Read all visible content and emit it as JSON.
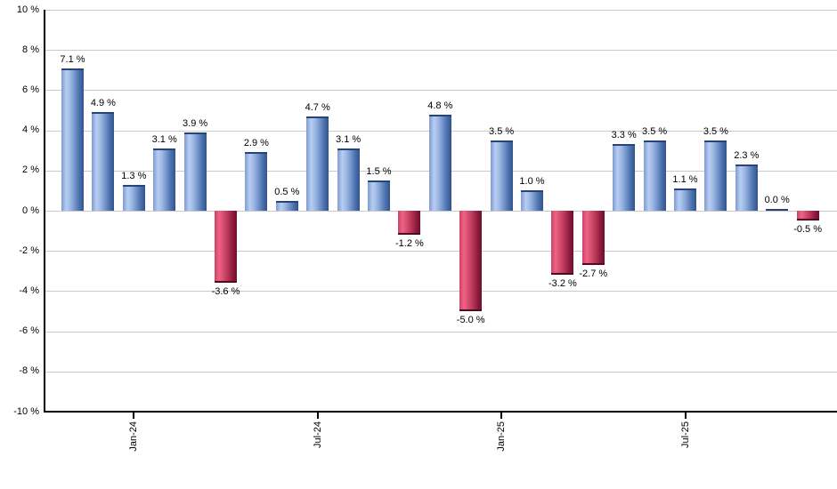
{
  "chart_data": {
    "type": "bar",
    "title": "",
    "grid": true,
    "legend_position": "none",
    "bars": [
      {
        "value": 7.1,
        "label": "7.1 %"
      },
      {
        "value": 4.9,
        "label": "4.9 %"
      },
      {
        "value": 1.3,
        "label": "1.3 %"
      },
      {
        "value": 3.1,
        "label": "3.1 %"
      },
      {
        "value": 3.9,
        "label": "3.9 %"
      },
      {
        "value": -3.6,
        "label": "-3.6 %"
      },
      {
        "value": 2.9,
        "label": "2.9 %"
      },
      {
        "value": 0.5,
        "label": "0.5 %"
      },
      {
        "value": 4.7,
        "label": "4.7 %"
      },
      {
        "value": 3.1,
        "label": "3.1 %"
      },
      {
        "value": 1.5,
        "label": "1.5 %"
      },
      {
        "value": -1.2,
        "label": "-1.2 %"
      },
      {
        "value": 4.8,
        "label": "4.8 %"
      },
      {
        "value": -5.0,
        "label": "-5.0 %"
      },
      {
        "value": 3.5,
        "label": "3.5 %"
      },
      {
        "value": 1.0,
        "label": "1.0 %"
      },
      {
        "value": -3.2,
        "label": "-3.2 %"
      },
      {
        "value": -2.7,
        "label": "-2.7 %"
      },
      {
        "value": 3.3,
        "label": "3.3 %"
      },
      {
        "value": 3.5,
        "label": "3.5 %"
      },
      {
        "value": 1.1,
        "label": "1.1 %"
      },
      {
        "value": 3.5,
        "label": "3.5 %"
      },
      {
        "value": 2.3,
        "label": "2.3 %"
      },
      {
        "value": 0.0,
        "label": "0.0 %"
      },
      {
        "value": -0.5,
        "label": "-0.5 %"
      }
    ],
    "y_axis": {
      "min": -10,
      "max": 10,
      "step": 2,
      "ticks": [
        {
          "value": 10,
          "label": "10 %"
        },
        {
          "value": 8,
          "label": "8 %"
        },
        {
          "value": 6,
          "label": "6 %"
        },
        {
          "value": 4,
          "label": "4 %"
        },
        {
          "value": 2,
          "label": "2 %"
        },
        {
          "value": 0,
          "label": "0 %"
        },
        {
          "value": -2,
          "label": "-2 %"
        },
        {
          "value": -4,
          "label": "-4 %"
        },
        {
          "value": -6,
          "label": "-6 %"
        },
        {
          "value": -8,
          "label": "-8 %"
        },
        {
          "value": -10,
          "label": "-10 %"
        }
      ]
    },
    "x_axis": {
      "ticks": [
        {
          "label": "Jan-24",
          "bar_index": 2
        },
        {
          "label": "Jul-24",
          "bar_index": 8
        },
        {
          "label": "Jan-25",
          "bar_index": 14
        },
        {
          "label": "Jul-25",
          "bar_index": 20
        }
      ]
    },
    "colors": {
      "positive_bar": "#7495cb",
      "positive_bar_highlight": "#b9cdf0",
      "positive_bar_edge": "#31548f",
      "negative_bar": "#cf4168",
      "negative_bar_highlight": "#ee6384",
      "negative_bar_edge": "#6e0f2f",
      "gridline": "#c9c9c9",
      "axis": "#000000",
      "label_text": "#000000",
      "background": "#ffffff"
    }
  }
}
